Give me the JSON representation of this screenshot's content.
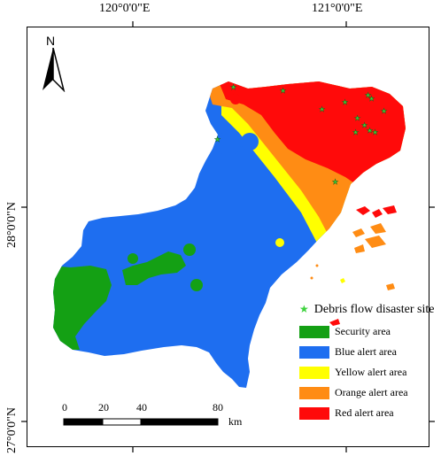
{
  "coordinates": {
    "lon_left": "120°0'0\"E",
    "lon_right": "121°0'0\"E",
    "lat_upper": "28°0'0\"N",
    "lat_lower": "27°0'0\"N"
  },
  "north_arrow": {
    "label": "N",
    "icon": "north-arrow-icon"
  },
  "scale_bar": {
    "ticks": [
      "0",
      "20",
      "40",
      "80"
    ],
    "unit": "km"
  },
  "legend": {
    "title": "Debris flow disaster site",
    "items": [
      {
        "label": "Security area",
        "color": "#14a014"
      },
      {
        "label": "Blue alert area",
        "color": "#1e6ef0"
      },
      {
        "label": "Yellow alert area",
        "color": "#ffff00"
      },
      {
        "label": "Orange alert area",
        "color": "#ff8c14"
      },
      {
        "label": "Red alert area",
        "color": "#ff0a0a"
      }
    ]
  },
  "colors": {
    "security": "#14a014",
    "blue": "#1e6ef0",
    "yellow": "#ffff00",
    "orange": "#ff8c14",
    "red": "#ff0a0a",
    "site_marker": "#3cd23c"
  }
}
